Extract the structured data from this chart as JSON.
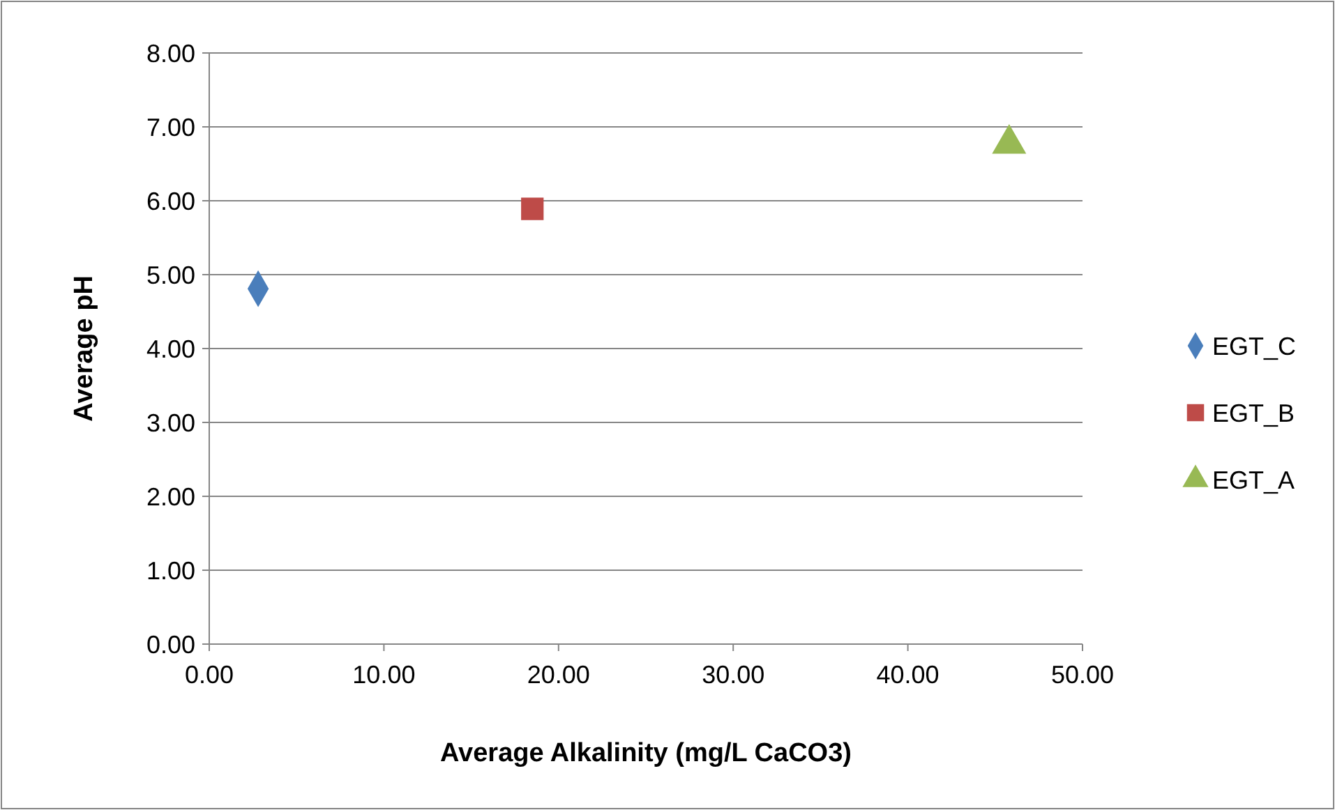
{
  "chart_data": {
    "type": "scatter",
    "xlabel": "Average Alkalinity (mg/L CaCO3)",
    "ylabel": "Average pH",
    "xlim": [
      0,
      50
    ],
    "xticks": [
      {
        "value": 0,
        "label": "0.00"
      },
      {
        "value": 10,
        "label": "10.00"
      },
      {
        "value": 20,
        "label": "20.00"
      },
      {
        "value": 30,
        "label": "30.00"
      },
      {
        "value": 40,
        "label": "40.00"
      },
      {
        "value": 50,
        "label": "50.00"
      }
    ],
    "ylim": [
      0,
      8
    ],
    "yticks": [
      {
        "value": 0,
        "label": "0.00"
      },
      {
        "value": 1,
        "label": "1.00"
      },
      {
        "value": 2,
        "label": "2.00"
      },
      {
        "value": 3,
        "label": "3.00"
      },
      {
        "value": 4,
        "label": "4.00"
      },
      {
        "value": 5,
        "label": "5.00"
      },
      {
        "value": 6,
        "label": "6.00"
      },
      {
        "value": 7,
        "label": "7.00"
      },
      {
        "value": 8,
        "label": "8.00"
      }
    ],
    "grid": "y",
    "legend": "right",
    "series": [
      {
        "name": "EGT_C",
        "color": "#4a7ebb",
        "marker": "diamond",
        "x": [
          2.8
        ],
        "values": [
          4.81
        ]
      },
      {
        "name": "EGT_B",
        "color": "#be4b48",
        "marker": "square",
        "x": [
          18.5
        ],
        "values": [
          5.89
        ]
      },
      {
        "name": "EGT_A",
        "color": "#98b954",
        "marker": "triangle",
        "x": [
          45.8
        ],
        "values": [
          6.77
        ]
      }
    ]
  }
}
